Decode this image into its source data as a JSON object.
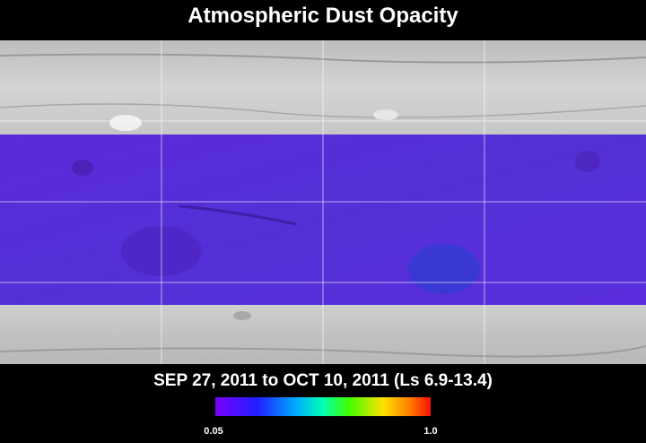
{
  "header": {
    "title": "Atmospheric Dust Opacity"
  },
  "footer": {
    "date_range": "SEP 27, 2011 to OCT 10, 2011 (Ls 6.9-13.4)"
  },
  "colorbar": {
    "min_label": "0.05",
    "max_label": "1.0"
  }
}
